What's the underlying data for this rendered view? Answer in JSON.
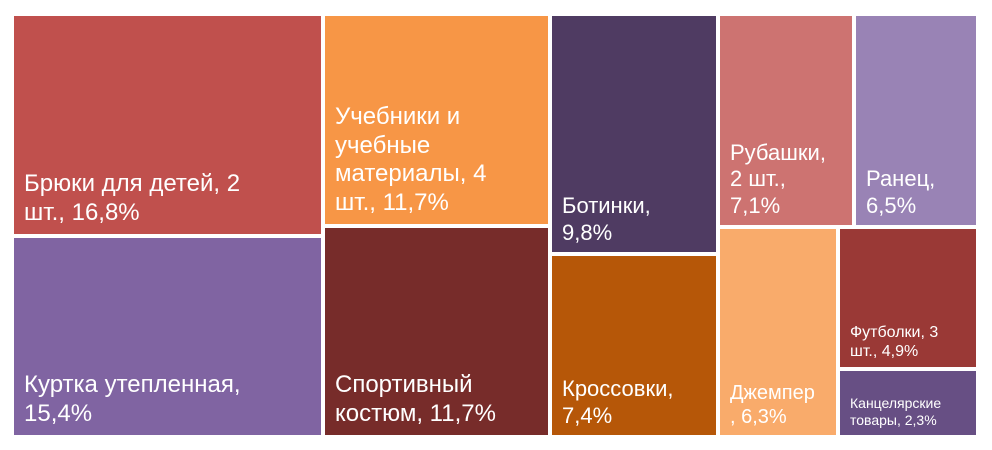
{
  "chart_data": {
    "type": "treemap",
    "items": [
      {
        "label": "Брюки для детей, 2\nшт., 16,8%",
        "value": 16.8,
        "color": "#C0504D"
      },
      {
        "label": "Куртка утепленная,\n15,4%",
        "value": 15.4,
        "color": "#8064A2"
      },
      {
        "label": "Учебники и\nучебные\nматериалы, 4\nшт., 11,7%",
        "value": 11.7,
        "color": "#F79646"
      },
      {
        "label": "Спортивный\nкостюм, 11,7%",
        "value": 11.7,
        "color": "#772C2A"
      },
      {
        "label": "Ботинки,\n9,8%",
        "value": 9.8,
        "color": "#4F3B62"
      },
      {
        "label": "Кроссовки,\n7,4%",
        "value": 7.4,
        "color": "#B65708"
      },
      {
        "label": "Рубашки,\n2 шт.,\n7,1%",
        "value": 7.1,
        "color": "#CD7371"
      },
      {
        "label": "Джемпер\n, 6,3%",
        "value": 6.3,
        "color": "#F9AB6B"
      },
      {
        "label": "Ранец,\n6,5%",
        "value": 6.5,
        "color": "#9983B5"
      },
      {
        "label": "Футболки, 3\nшт., 4,9%",
        "value": 4.9,
        "color": "#9A3936"
      },
      {
        "label": "Канцелярские\nтовары, 2,3%",
        "value": 2.3,
        "color": "#674F84"
      }
    ]
  }
}
